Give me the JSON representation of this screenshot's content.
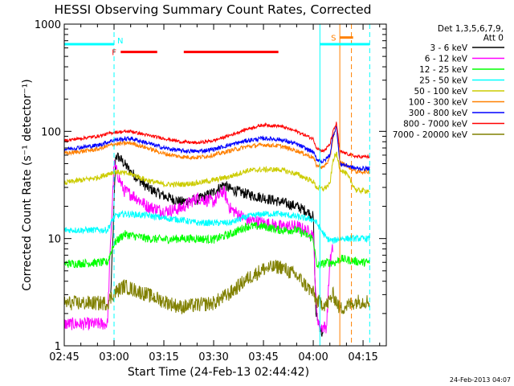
{
  "chart_data": {
    "type": "line",
    "title": "HESSI Observing Summary Count Rates, Corrected",
    "xlabel": "Start Time (24-Feb-13 02:44:42)",
    "ylabel": "Corrected Count Rate (s⁻¹ detector⁻¹)",
    "timestamp": "24-Feb-2013 04:07",
    "x_unit": "minutes after 02:45 UT",
    "xlim": [
      0,
      97
    ],
    "ylim": [
      1,
      1000
    ],
    "y_scale": "log",
    "x_ticks": [
      {
        "t": 0,
        "label": "02:45"
      },
      {
        "t": 15,
        "label": "03:00"
      },
      {
        "t": 30,
        "label": "03:15"
      },
      {
        "t": 45,
        "label": "03:30"
      },
      {
        "t": 60,
        "label": "03:45"
      },
      {
        "t": 75,
        "label": "04:00"
      },
      {
        "t": 90,
        "label": "04:15"
      }
    ],
    "y_ticks": [
      {
        "v": 1,
        "label": "1"
      },
      {
        "v": 10,
        "label": "10"
      },
      {
        "v": 100,
        "label": "100"
      },
      {
        "v": 1000,
        "label": "1000"
      }
    ],
    "legend": {
      "placement": "top-right",
      "header": [
        "Det 1,3,5,6,7,9,",
        "Att 0"
      ]
    },
    "series": [
      {
        "name": "3 - 6 keV",
        "color": "#000000",
        "noise": 0.05,
        "gaps": [
          [
            0,
            14
          ]
        ],
        "points": [
          [
            14,
            3
          ],
          [
            14.6,
            9
          ],
          [
            15.5,
            60
          ],
          [
            17,
            55
          ],
          [
            20,
            42
          ],
          [
            25,
            30
          ],
          [
            30,
            25
          ],
          [
            35,
            22
          ],
          [
            40,
            23
          ],
          [
            45,
            27
          ],
          [
            48,
            32
          ],
          [
            50,
            29
          ],
          [
            55,
            26
          ],
          [
            60,
            24
          ],
          [
            65,
            22
          ],
          [
            70,
            20
          ],
          [
            73,
            18
          ],
          [
            75,
            16
          ],
          [
            75.8,
            2
          ],
          [
            77,
            1.5
          ],
          [
            78,
            1.2
          ]
        ]
      },
      {
        "name": "6 - 12 keV",
        "color": "#ff00ff",
        "noise": 0.06,
        "points": [
          [
            0,
            1.6
          ],
          [
            13,
            1.6
          ],
          [
            14,
            10
          ],
          [
            15,
            50
          ],
          [
            16,
            40
          ],
          [
            18,
            28
          ],
          [
            21,
            25
          ],
          [
            25,
            20
          ],
          [
            30,
            18
          ],
          [
            35,
            19
          ],
          [
            40,
            24
          ],
          [
            45,
            22
          ],
          [
            48,
            28
          ],
          [
            50,
            19
          ],
          [
            55,
            15
          ],
          [
            60,
            14
          ],
          [
            65,
            13
          ],
          [
            70,
            13
          ],
          [
            75,
            11
          ],
          [
            76,
            2
          ],
          [
            77,
            1.5
          ],
          [
            79,
            1.5
          ],
          [
            80,
            6
          ],
          [
            81,
            8.5
          ]
        ]
      },
      {
        "name": "12 - 25 keV",
        "color": "#00ff00",
        "noise": 0.04,
        "points": [
          [
            0,
            5.8
          ],
          [
            13,
            6
          ],
          [
            15,
            9
          ],
          [
            18,
            11
          ],
          [
            25,
            10
          ],
          [
            30,
            9.8
          ],
          [
            35,
            10
          ],
          [
            40,
            10
          ],
          [
            45,
            9.8
          ],
          [
            50,
            11
          ],
          [
            55,
            13
          ],
          [
            60,
            13
          ],
          [
            65,
            12
          ],
          [
            70,
            12
          ],
          [
            75,
            10
          ],
          [
            76,
            5.5
          ],
          [
            79,
            6
          ],
          [
            82,
            6
          ],
          [
            83,
            6.5
          ],
          [
            90,
            6
          ],
          [
            92,
            6
          ]
        ]
      },
      {
        "name": "25 - 50 keV",
        "color": "#00ffff",
        "noise": 0.03,
        "points": [
          [
            0,
            12
          ],
          [
            13,
            12
          ],
          [
            15,
            16
          ],
          [
            18,
            17
          ],
          [
            25,
            16.5
          ],
          [
            30,
            15.5
          ],
          [
            35,
            15
          ],
          [
            40,
            14
          ],
          [
            45,
            14
          ],
          [
            50,
            14
          ],
          [
            55,
            16
          ],
          [
            60,
            17
          ],
          [
            65,
            17
          ],
          [
            70,
            16
          ],
          [
            75,
            15
          ],
          [
            76,
            14
          ],
          [
            79,
            10
          ],
          [
            81,
            9.5
          ],
          [
            83,
            10
          ],
          [
            90,
            10
          ],
          [
            92,
            10
          ]
        ]
      },
      {
        "name": "50 - 100 keV",
        "color": "#cccc00",
        "noise": 0.025,
        "points": [
          [
            0,
            33
          ],
          [
            5,
            35
          ],
          [
            10,
            37
          ],
          [
            15,
            42
          ],
          [
            20,
            40
          ],
          [
            25,
            35
          ],
          [
            30,
            32
          ],
          [
            35,
            32
          ],
          [
            40,
            33
          ],
          [
            45,
            35
          ],
          [
            50,
            38
          ],
          [
            55,
            43
          ],
          [
            60,
            44
          ],
          [
            65,
            44
          ],
          [
            70,
            40
          ],
          [
            75,
            34
          ],
          [
            76,
            30
          ],
          [
            78,
            29
          ],
          [
            80,
            32
          ],
          [
            81,
            55
          ],
          [
            82,
            62
          ],
          [
            83,
            45
          ],
          [
            85,
            40
          ],
          [
            88,
            28
          ],
          [
            92,
            28
          ]
        ]
      },
      {
        "name": "100 - 300 keV",
        "color": "#ff8000",
        "noise": 0.02,
        "points": [
          [
            0,
            62
          ],
          [
            5,
            65
          ],
          [
            10,
            68
          ],
          [
            15,
            76
          ],
          [
            20,
            78
          ],
          [
            25,
            70
          ],
          [
            30,
            62
          ],
          [
            35,
            58
          ],
          [
            40,
            57
          ],
          [
            45,
            60
          ],
          [
            50,
            66
          ],
          [
            55,
            72
          ],
          [
            60,
            75
          ],
          [
            65,
            73
          ],
          [
            70,
            66
          ],
          [
            75,
            57
          ],
          [
            76,
            48
          ],
          [
            78,
            46
          ],
          [
            80,
            55
          ],
          [
            81,
            90
          ],
          [
            82,
            110
          ],
          [
            83,
            52
          ],
          [
            85,
            48
          ],
          [
            88,
            42
          ],
          [
            92,
            42
          ]
        ]
      },
      {
        "name": "300 - 800 keV",
        "color": "#0000ff",
        "noise": 0.02,
        "points": [
          [
            0,
            68
          ],
          [
            5,
            71
          ],
          [
            10,
            74
          ],
          [
            15,
            83
          ],
          [
            20,
            86
          ],
          [
            25,
            78
          ],
          [
            30,
            70
          ],
          [
            35,
            66
          ],
          [
            40,
            65
          ],
          [
            45,
            68
          ],
          [
            50,
            75
          ],
          [
            55,
            82
          ],
          [
            60,
            86
          ],
          [
            65,
            84
          ],
          [
            70,
            76
          ],
          [
            75,
            64
          ],
          [
            76,
            55
          ],
          [
            78,
            52
          ],
          [
            80,
            60
          ],
          [
            81,
            92
          ],
          [
            82,
            112
          ],
          [
            83,
            50
          ],
          [
            85,
            48
          ],
          [
            88,
            45
          ],
          [
            92,
            45
          ]
        ]
      },
      {
        "name": "800 - 7000 keV",
        "color": "#ff0000",
        "noise": 0.015,
        "points": [
          [
            0,
            82
          ],
          [
            5,
            86
          ],
          [
            10,
            90
          ],
          [
            15,
            98
          ],
          [
            20,
            100
          ],
          [
            25,
            92
          ],
          [
            30,
            86
          ],
          [
            35,
            80
          ],
          [
            40,
            78
          ],
          [
            45,
            82
          ],
          [
            50,
            92
          ],
          [
            55,
            105
          ],
          [
            60,
            115
          ],
          [
            65,
            112
          ],
          [
            70,
            100
          ],
          [
            75,
            85
          ],
          [
            76,
            70
          ],
          [
            78,
            65
          ],
          [
            80,
            75
          ],
          [
            81,
            100
          ],
          [
            82,
            120
          ],
          [
            83,
            65
          ],
          [
            85,
            62
          ],
          [
            88,
            58
          ],
          [
            92,
            58
          ]
        ]
      },
      {
        "name": "7000 - 20000 keV",
        "color": "#808000",
        "noise": 0.07,
        "points": [
          [
            0,
            2.5
          ],
          [
            13,
            2.5
          ],
          [
            15,
            3.1
          ],
          [
            18,
            3.6
          ],
          [
            25,
            3.0
          ],
          [
            30,
            2.6
          ],
          [
            35,
            2.3
          ],
          [
            40,
            2.4
          ],
          [
            45,
            2.5
          ],
          [
            50,
            3.1
          ],
          [
            55,
            4.2
          ],
          [
            60,
            5.2
          ],
          [
            65,
            5.5
          ],
          [
            70,
            4.5
          ],
          [
            75,
            3.1
          ],
          [
            76,
            2.6
          ],
          [
            79,
            2.4
          ],
          [
            81,
            3.0
          ],
          [
            82,
            2.6
          ],
          [
            83,
            2.2
          ],
          [
            88,
            2.6
          ],
          [
            92,
            2.6
          ]
        ]
      }
    ],
    "annotations": [
      {
        "label": "F",
        "color": "#ff0000",
        "y": 550,
        "bars": [
          [
            17,
            28
          ],
          [
            36,
            64.5
          ]
        ]
      },
      {
        "label": "N",
        "color": "#00ffff",
        "y": 650,
        "bars": [
          [
            0,
            15
          ],
          [
            77,
            92
          ]
        ]
      },
      {
        "label": "S",
        "color": "#ff8000",
        "y": 750,
        "bars": [
          [
            83,
            87
          ]
        ]
      }
    ],
    "vlines": [
      {
        "t": 15,
        "color": "#00ffff",
        "style": "dashed"
      },
      {
        "t": 77,
        "color": "#00ffff",
        "style": "solid"
      },
      {
        "t": 83,
        "color": "#ff8000",
        "style": "solid"
      },
      {
        "t": 86.5,
        "color": "#ff8000",
        "style": "dashed"
      },
      {
        "t": 92,
        "color": "#00ffff",
        "style": "dashed"
      }
    ]
  }
}
